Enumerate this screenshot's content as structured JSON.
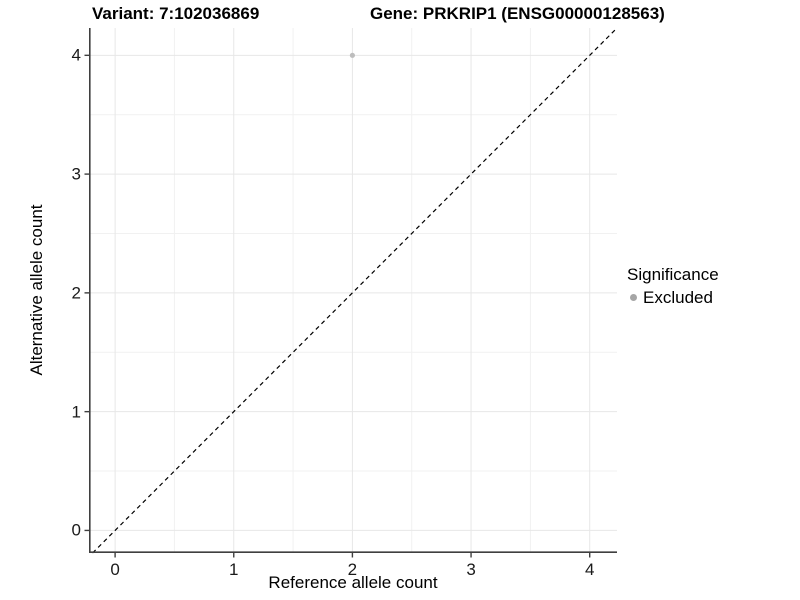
{
  "header": {
    "variant_title": "Variant: 7:102036869",
    "gene_title": "Gene: PRKRIP1 (ENSG00000128563)"
  },
  "chart_data": {
    "type": "scatter",
    "xlabel": "Reference allele count",
    "ylabel": "Alternative allele count",
    "xlim": [
      -0.22,
      4.23
    ],
    "ylim": [
      -0.19,
      4.23
    ],
    "xticks": [
      0,
      1,
      2,
      3,
      4
    ],
    "yticks": [
      0,
      1,
      2,
      3,
      4
    ],
    "xticks_minor": [
      0.5,
      1.5,
      2.5,
      3.5
    ],
    "yticks_minor": [
      0.5,
      1.5,
      2.5,
      3.5
    ],
    "grid": "on",
    "points": [
      {
        "x": 2,
        "y": 4,
        "significance": "Excluded"
      }
    ],
    "identity_line": {
      "type": "y=x",
      "style": "dashed",
      "color": "#000000"
    },
    "legend": {
      "position": "right",
      "title": "Significance",
      "items": [
        {
          "label": "Excluded",
          "color": "#a6a6a6"
        }
      ]
    },
    "colors": {
      "point_excluded": "#bdbdbd",
      "grid_major": "#e7e7e7",
      "grid_minor": "#f1f1f1",
      "axis_line": "#3f3f3f",
      "tick_text": "#1a1a1a",
      "title_text": "#000000"
    }
  }
}
